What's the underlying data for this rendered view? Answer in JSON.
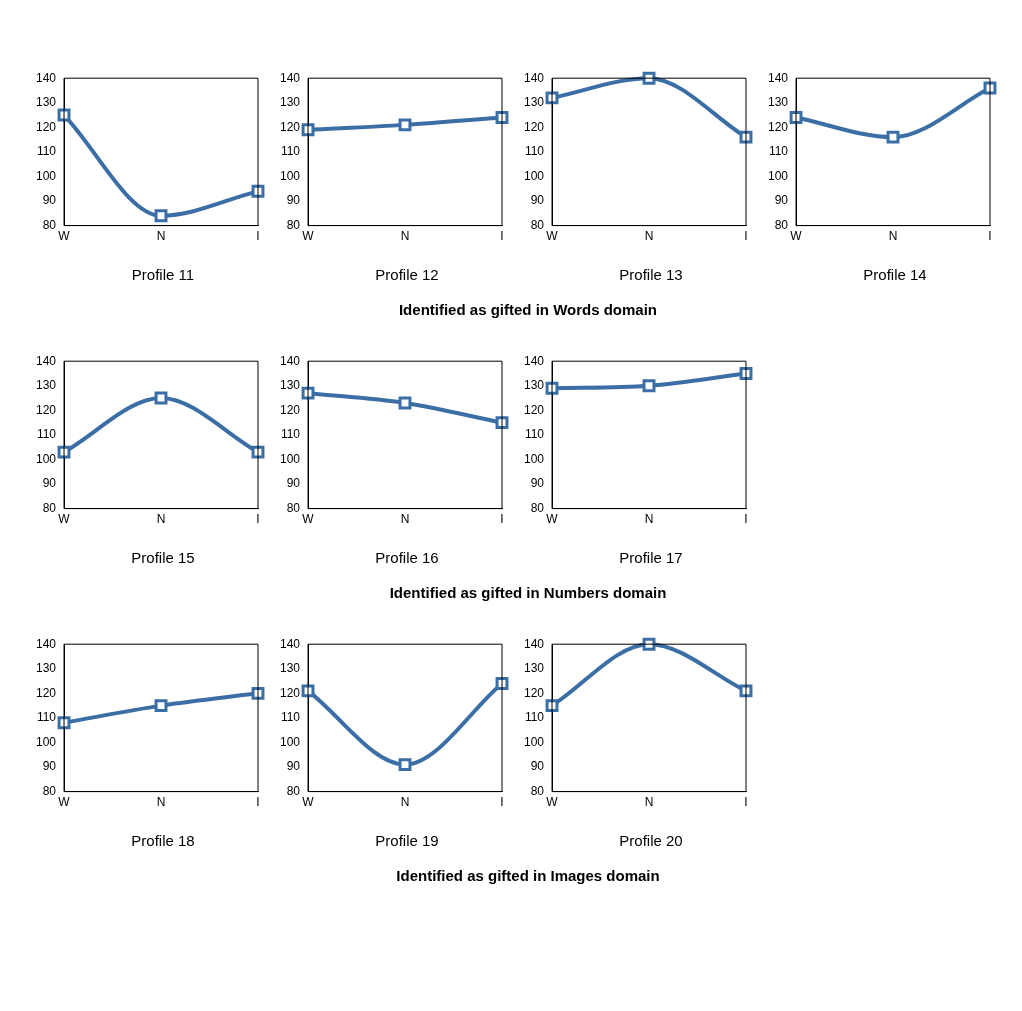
{
  "chart_data": [
    {
      "type": "line",
      "title": "Profile 11",
      "categories": [
        "W",
        "N",
        "I"
      ],
      "series": [
        {
          "color": "#3b6ea5",
          "values": [
            125,
            84,
            94
          ]
        }
      ],
      "ylim": [
        80,
        140
      ],
      "yticks": [
        80,
        90,
        100,
        110,
        120,
        130,
        140
      ],
      "grid": false,
      "marker": "square"
    },
    {
      "type": "line",
      "title": "Profile 12",
      "categories": [
        "W",
        "N",
        "I"
      ],
      "series": [
        {
          "color": "#3b6ea5",
          "values": [
            119,
            121,
            124
          ]
        }
      ],
      "ylim": [
        80,
        140
      ],
      "yticks": [
        80,
        90,
        100,
        110,
        120,
        130,
        140
      ],
      "grid": false,
      "marker": "square"
    },
    {
      "type": "line",
      "title": "Profile 13",
      "categories": [
        "W",
        "N",
        "I"
      ],
      "series": [
        {
          "color": "#3b6ea5",
          "values": [
            132,
            140,
            116
          ]
        }
      ],
      "ylim": [
        80,
        140
      ],
      "yticks": [
        80,
        90,
        100,
        110,
        120,
        130,
        140
      ],
      "grid": false,
      "marker": "square"
    },
    {
      "type": "line",
      "title": "Profile 14",
      "categories": [
        "W",
        "N",
        "I"
      ],
      "series": [
        {
          "color": "#3b6ea5",
          "values": [
            124,
            116,
            136
          ]
        }
      ],
      "ylim": [
        80,
        140
      ],
      "yticks": [
        80,
        90,
        100,
        110,
        120,
        130,
        140
      ],
      "grid": false,
      "marker": "square",
      "annotations": [
        "Identified as gifted in Words domain"
      ]
    },
    {
      "type": "line",
      "title": "Profile 15",
      "categories": [
        "W",
        "N",
        "I"
      ],
      "series": [
        {
          "color": "#3b6ea5",
          "values": [
            103,
            125,
            103
          ]
        }
      ],
      "ylim": [
        80,
        140
      ],
      "yticks": [
        80,
        90,
        100,
        110,
        120,
        130,
        140
      ],
      "grid": false,
      "marker": "square"
    },
    {
      "type": "line",
      "title": "Profile 16",
      "categories": [
        "W",
        "N",
        "I"
      ],
      "series": [
        {
          "color": "#3b6ea5",
          "values": [
            127,
            123,
            115
          ]
        }
      ],
      "ylim": [
        80,
        140
      ],
      "yticks": [
        80,
        90,
        100,
        110,
        120,
        130,
        140
      ],
      "grid": false,
      "marker": "square"
    },
    {
      "type": "line",
      "title": "Profile 17",
      "categories": [
        "W",
        "N",
        "I"
      ],
      "series": [
        {
          "color": "#3b6ea5",
          "values": [
            129,
            130,
            135
          ]
        }
      ],
      "ylim": [
        80,
        140
      ],
      "yticks": [
        80,
        90,
        100,
        110,
        120,
        130,
        140
      ],
      "grid": false,
      "marker": "square",
      "annotations": [
        "Identified as gifted in Numbers domain"
      ]
    },
    {
      "type": "line",
      "title": "Profile 18",
      "categories": [
        "W",
        "N",
        "I"
      ],
      "series": [
        {
          "color": "#3b6ea5",
          "values": [
            108,
            115,
            120
          ]
        }
      ],
      "ylim": [
        80,
        140
      ],
      "yticks": [
        80,
        90,
        100,
        110,
        120,
        130,
        140
      ],
      "grid": false,
      "marker": "square"
    },
    {
      "type": "line",
      "title": "Profile 19",
      "categories": [
        "W",
        "N",
        "I"
      ],
      "series": [
        {
          "color": "#3b6ea5",
          "values": [
            121,
            91,
            124
          ]
        }
      ],
      "ylim": [
        80,
        140
      ],
      "yticks": [
        80,
        90,
        100,
        110,
        120,
        130,
        140
      ],
      "grid": false,
      "marker": "square"
    },
    {
      "type": "line",
      "title": "Profile 20",
      "categories": [
        "W",
        "N",
        "I"
      ],
      "series": [
        {
          "color": "#3b6ea5",
          "values": [
            115,
            140,
            121
          ]
        }
      ],
      "ylim": [
        80,
        140
      ],
      "yticks": [
        80,
        90,
        100,
        110,
        120,
        130,
        140
      ],
      "grid": false,
      "marker": "square",
      "annotations": [
        "Identified as gifted in Images domain"
      ]
    }
  ]
}
